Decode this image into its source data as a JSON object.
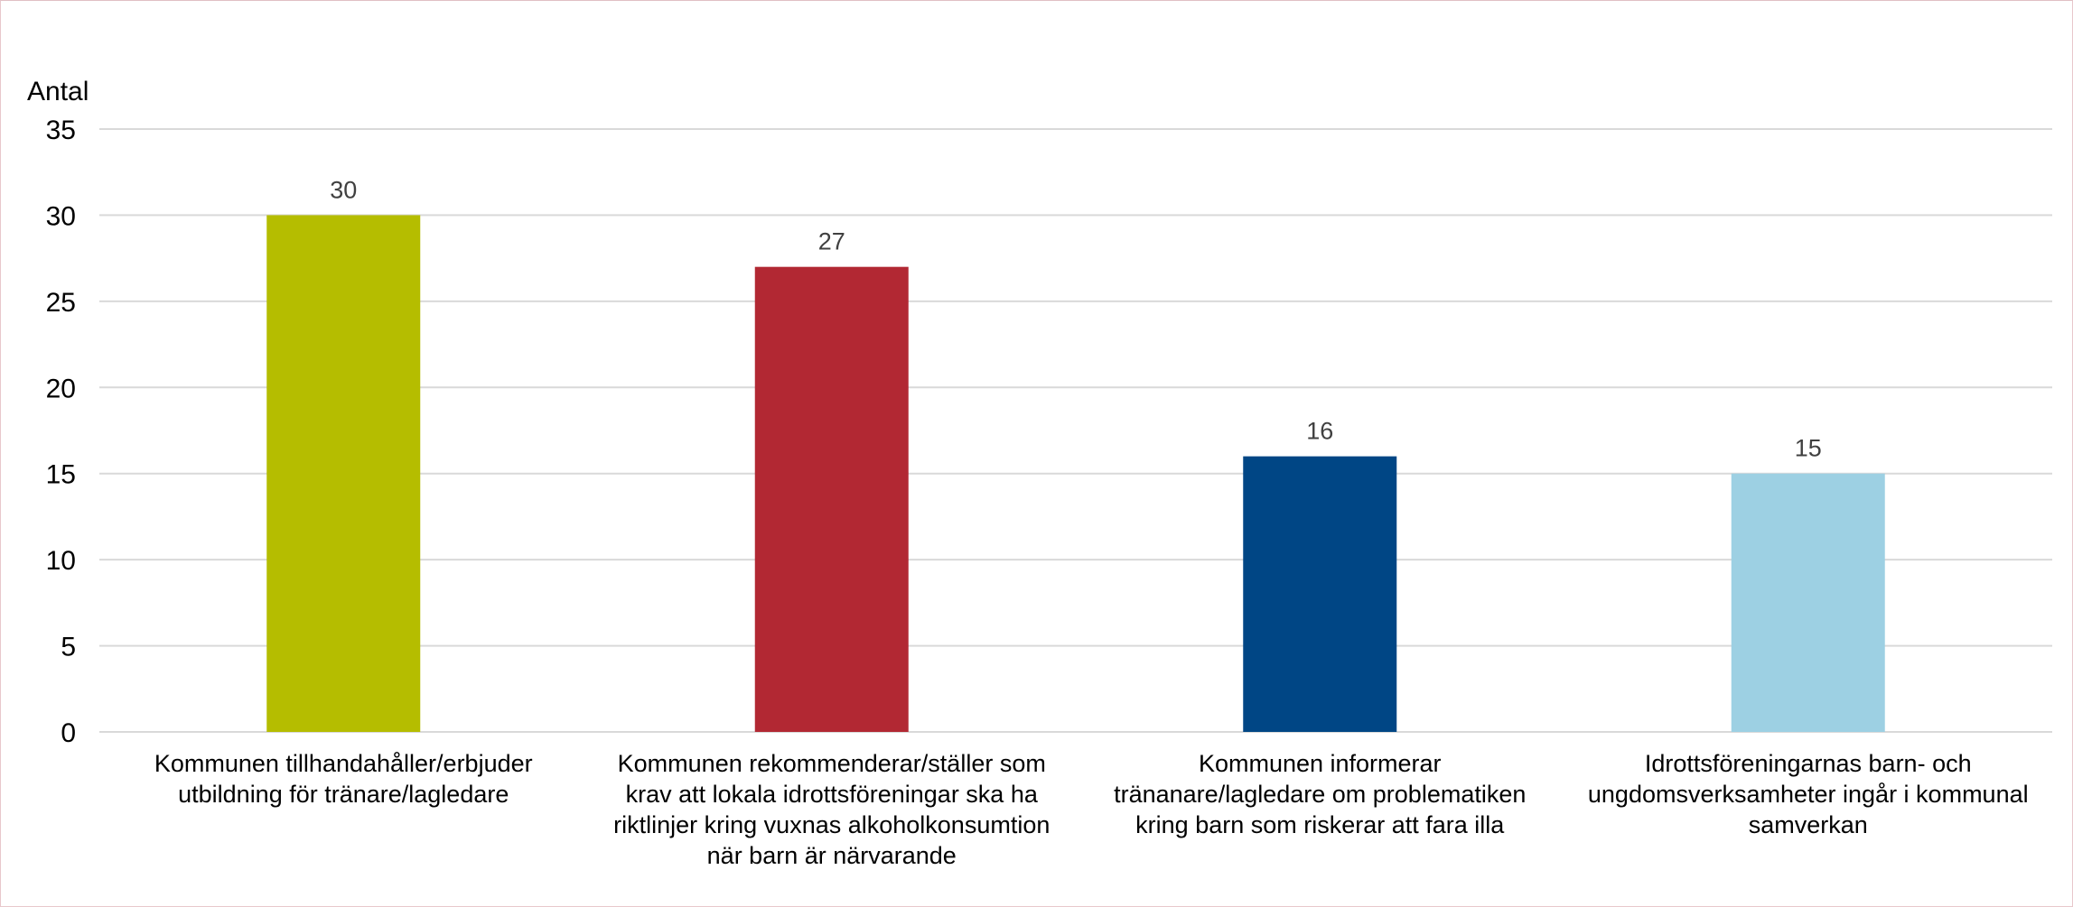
{
  "chart_data": {
    "type": "bar",
    "ylabel": "Antal",
    "ylim": [
      0,
      35
    ],
    "yticks": [
      0,
      5,
      10,
      15,
      20,
      25,
      30,
      35
    ],
    "grid": true,
    "categories": [
      [
        "Kommunen tillhandahåller/erbjuder",
        "utbildning för tränare/lagledare"
      ],
      [
        "Kommunen rekommenderar/ställer som",
        "krav att lokala idrottsföreningar ska ha",
        "riktlinjer kring vuxnas alkoholkonsumtion",
        "när barn är närvarande"
      ],
      [
        "Kommunen informerar",
        "tränanare/lagledare om problematiken",
        "kring barn som riskerar att fara illa"
      ],
      [
        "Idrottsföreningarnas barn- och",
        "ungdomsverksamheter ingår i kommunal",
        "samverkan"
      ]
    ],
    "values": [
      30,
      27,
      16,
      15
    ],
    "colors": [
      "#b5bd00",
      "#b22833",
      "#004685",
      "#9dd0e3"
    ]
  }
}
